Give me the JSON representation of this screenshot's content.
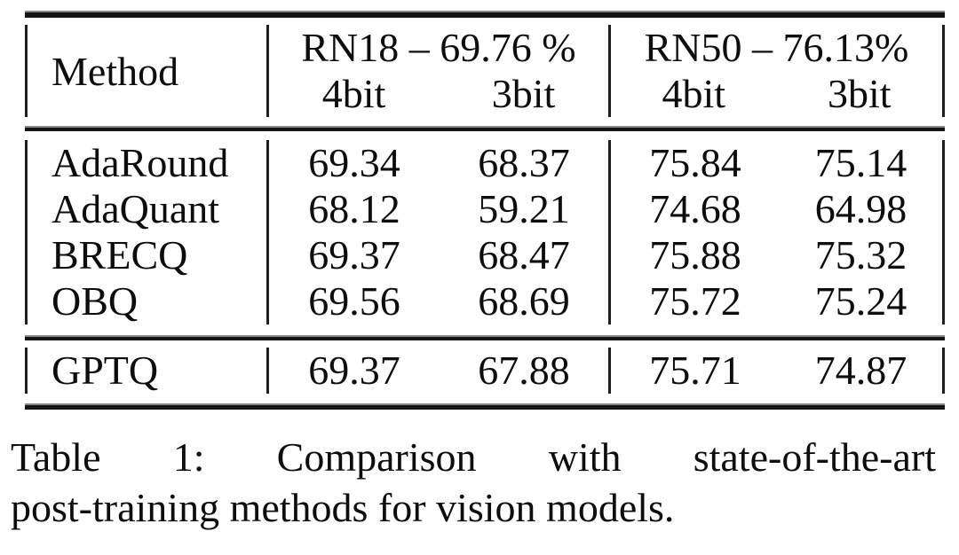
{
  "table": {
    "columns": {
      "method_header": "Method",
      "groups": [
        {
          "label": "RN18 – 69.76 %",
          "subcolumns": [
            "4bit",
            "3bit"
          ]
        },
        {
          "label": "RN50 – 76.13%",
          "subcolumns": [
            "4bit",
            "3bit"
          ]
        }
      ]
    },
    "body_rows": [
      {
        "method": "AdaRound",
        "values": [
          "69.34",
          "68.37",
          "75.84",
          "75.14"
        ]
      },
      {
        "method": "AdaQuant",
        "values": [
          "68.12",
          "59.21",
          "74.68",
          "64.98"
        ]
      },
      {
        "method": "BRECQ",
        "values": [
          "69.37",
          "68.47",
          "75.88",
          "75.32"
        ]
      },
      {
        "method": "OBQ",
        "values": [
          "69.56",
          "68.69",
          "75.72",
          "75.24"
        ]
      }
    ],
    "highlight_row": {
      "method": "GPTQ",
      "values": [
        "69.37",
        "67.88",
        "75.71",
        "74.87"
      ]
    }
  },
  "caption": {
    "line1": "Table 1:  Comparison with state-of-the-art",
    "line2": "post-training methods for vision models."
  },
  "ink_color": "#0d0d0d"
}
